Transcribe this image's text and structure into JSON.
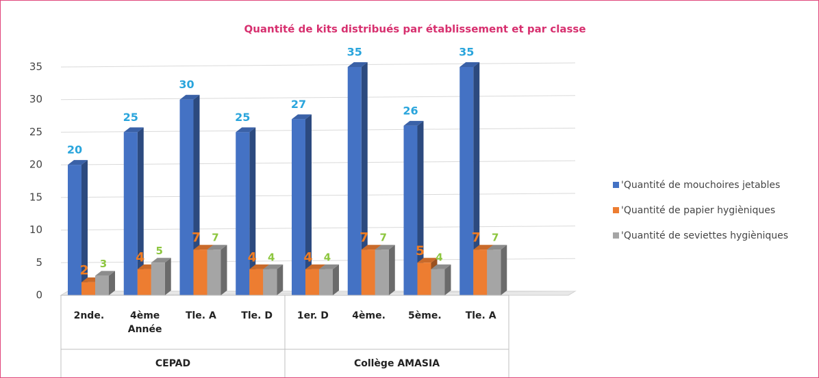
{
  "chart_data": {
    "type": "bar3d",
    "title": "Quantité de kits distribués par établissement et par classe",
    "categories": [
      "2nde.",
      "4ème Année",
      "Tle. A",
      "Tle. D",
      "1er. D",
      "4ème.",
      "5ème.",
      "Tle. A"
    ],
    "groups": [
      {
        "name": "CEPAD",
        "span": 4
      },
      {
        "name": "Collège AMASIA",
        "span": 4
      }
    ],
    "series": [
      {
        "name": "'Quantité de mouchoires jetables",
        "color": "#4472c4",
        "label_color": "#2aa5dc",
        "values": [
          20,
          25,
          30,
          25,
          27,
          35,
          26,
          35
        ]
      },
      {
        "name": "'Quantité de papier hygièniques",
        "color": "#ed7d31",
        "label_color": "#f07c22",
        "values": [
          2,
          4,
          7,
          4,
          4,
          7,
          5,
          7
        ]
      },
      {
        "name": "'Quantité de seviettes hygièniques",
        "color": "#a5a5a5",
        "label_color": "#8dc63f",
        "values": [
          3,
          5,
          7,
          4,
          4,
          7,
          4,
          7
        ]
      }
    ],
    "ylim": [
      0,
      35
    ],
    "yticks": [
      0,
      5,
      10,
      15,
      20,
      25,
      30,
      35
    ],
    "grid": true,
    "legend": "right"
  }
}
